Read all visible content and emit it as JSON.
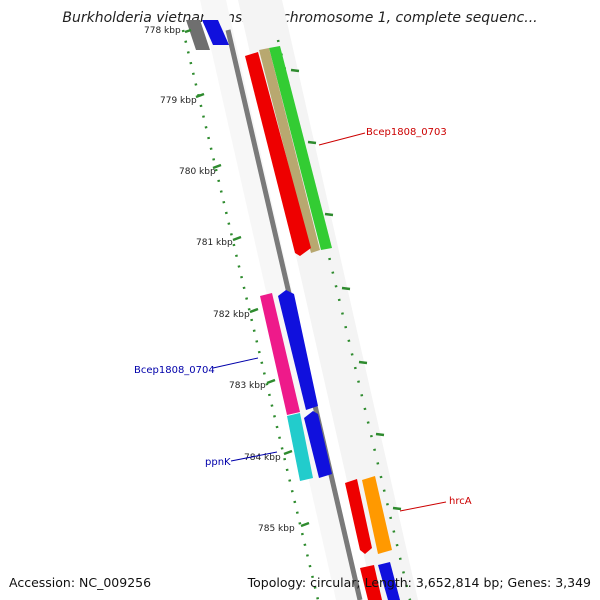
{
  "header": {
    "title": "Burkholderia vietnamiensis G4 chromosome 1, complete sequenc..."
  },
  "footer": {
    "accession": "Accession: NC_009256",
    "summary": "Topology: circular; Length: 3,652,814 bp; Genes: 3,349"
  },
  "colors": {
    "backbone": "#7a7a7a",
    "tick": "#2e8b2e",
    "label_forward": "#cc0000",
    "label_reverse": "#0000aa"
  },
  "ruler": {
    "ticks": [
      {
        "label": "778 kbp"
      },
      {
        "label": "779 kbp"
      },
      {
        "label": "780 kbp"
      },
      {
        "label": "781 kbp"
      },
      {
        "label": "782 kbp"
      },
      {
        "label": "783 kbp"
      },
      {
        "label": "784 kbp"
      },
      {
        "label": "785 kbp"
      }
    ]
  },
  "gene_labels": [
    {
      "text": "Bcep1808_0703",
      "color": "#cc0000"
    },
    {
      "text": "Bcep1808_0704",
      "color": "#0000aa"
    },
    {
      "text": "ppnK",
      "color": "#0000aa"
    },
    {
      "text": "hrcA",
      "color": "#cc0000"
    }
  ]
}
